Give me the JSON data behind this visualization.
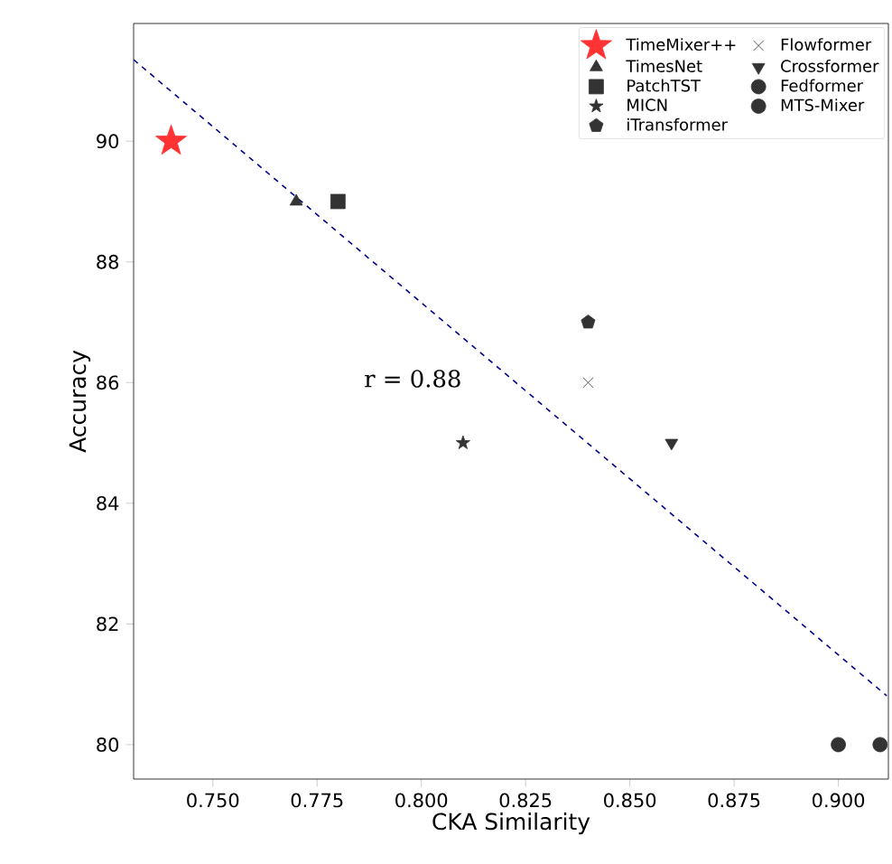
{
  "chart_data": {
    "type": "scatter",
    "xlabel": "CKA Similarity",
    "ylabel": "Accuracy",
    "xlim": [
      0.731,
      0.912
    ],
    "ylim": [
      79.43,
      91.95
    ],
    "xticks": [
      {
        "value": 0.75,
        "label": "0.750"
      },
      {
        "value": 0.775,
        "label": "0.775"
      },
      {
        "value": 0.8,
        "label": "0.800"
      },
      {
        "value": 0.825,
        "label": "0.825"
      },
      {
        "value": 0.85,
        "label": "0.850"
      },
      {
        "value": 0.875,
        "label": "0.875"
      },
      {
        "value": 0.9,
        "label": "0.900"
      }
    ],
    "yticks": [
      80,
      82,
      84,
      86,
      88,
      90
    ],
    "grid": false,
    "legend": "top right",
    "annotations": [
      "r = 0.88"
    ],
    "series": [
      {
        "name": "TimeMixer++",
        "color": "#ff3333",
        "marker": "star",
        "x": [
          0.74
        ],
        "values": [
          90
        ]
      },
      {
        "name": "TimesNet",
        "color": "#333333",
        "marker": "triangle",
        "x": [
          0.77
        ],
        "values": [
          89
        ]
      },
      {
        "name": "PatchTST",
        "color": "#333333",
        "marker": "square",
        "x": [
          0.78
        ],
        "values": [
          89
        ]
      },
      {
        "name": "MICN",
        "color": "#333333",
        "marker": "star",
        "x": [
          0.81
        ],
        "values": [
          85
        ]
      },
      {
        "name": "iTransformer",
        "color": "#333333",
        "x": [
          0.84
        ],
        "values": [
          87
        ]
      },
      {
        "name": "Flowformer",
        "color": "#333333",
        "marker": "cross",
        "x": [
          0.84
        ],
        "values": [
          86
        ]
      },
      {
        "name": "Crossformer",
        "color": "#333333",
        "marker": "triangle_down",
        "x": [
          0.86
        ],
        "values": [
          85
        ]
      },
      {
        "name": "Fedformer",
        "color": "#333333",
        "marker": "circle",
        "x": [
          0.9
        ],
        "values": [
          80
        ]
      },
      {
        "name": "MTS-Mixer",
        "color": "#333333",
        "marker": "circle",
        "x": [
          0.91
        ],
        "values": [
          80
        ]
      },
      {
        "type": "line",
        "color": "#00008b",
        "line_style": "dashed",
        "marker": "none",
        "x": [
          0.731,
          0.9116
        ],
        "values": [
          91.35,
          80.81
        ]
      }
    ]
  }
}
